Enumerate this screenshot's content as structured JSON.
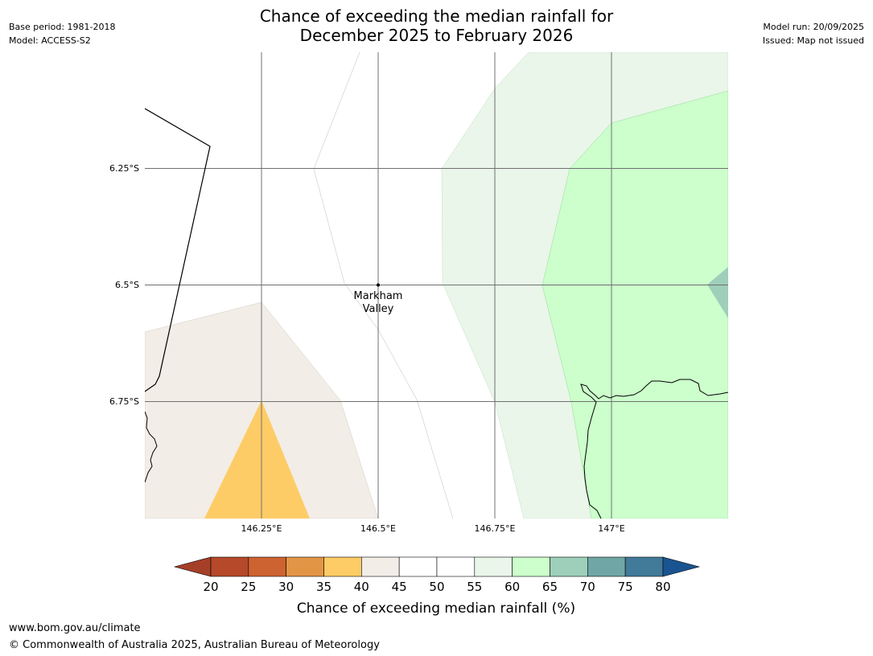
{
  "meta": {
    "base_period": "Base period: 1981-2018",
    "model": "Model: ACCESS-S2",
    "model_run": "Model run: 20/09/2025",
    "issued": "Issued: Map not issued"
  },
  "title": {
    "line1": "Chance of exceeding the median rainfall for",
    "line2": "December 2025 to February 2026"
  },
  "map": {
    "lat_labels": [
      "6.25°S",
      "6.5°S",
      "6.75°S"
    ],
    "lon_labels": [
      "146.25°E",
      "146.5°E",
      "146.75°E",
      "147°E"
    ],
    "place_label_line1": "Markham",
    "place_label_line2": "Valley"
  },
  "colorbar": {
    "ticks": [
      "20",
      "25",
      "30",
      "35",
      "40",
      "45",
      "50",
      "55",
      "60",
      "65",
      "70",
      "75",
      "80"
    ],
    "colors": [
      "#a63f28",
      "#b5492a",
      "#cd6331",
      "#e39546",
      "#fecc66",
      "#f2ede6",
      "#ffffff",
      "#ffffff",
      "#e9f6e9",
      "#ccffcc",
      "#9ecfba",
      "#70a6a6",
      "#427a9a",
      "#1a5490"
    ],
    "label": "Chance of exceeding median rainfall (%)"
  },
  "footer": {
    "url": "www.bom.gov.au/climate",
    "copyright": "© Commonwealth of Australia 2025, Australian Bureau of Meteorology"
  }
}
